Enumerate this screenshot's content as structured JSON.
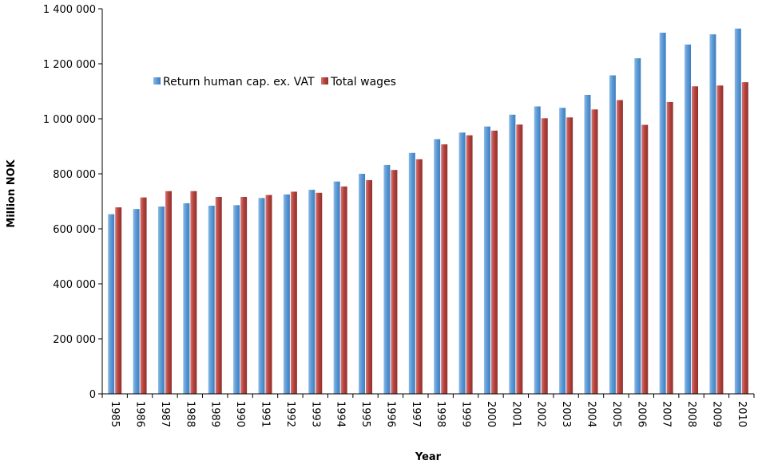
{
  "chart_data": {
    "type": "bar",
    "xlabel": "Year",
    "ylabel": "Million NOK",
    "ylim": [
      0,
      1400000
    ],
    "yticks": [
      0,
      200000,
      400000,
      600000,
      800000,
      1000000,
      1200000,
      1400000
    ],
    "ytick_labels": [
      "0",
      "200 000",
      "400 000",
      "600 000",
      "800 000",
      "1 000 000",
      "1 200 000",
      "1 400 000"
    ],
    "grid": false,
    "legend_position": "top-left",
    "categories": [
      "1985",
      "1986",
      "1987",
      "1988",
      "1989",
      "1990",
      "1991",
      "1992",
      "1993",
      "1994",
      "1995",
      "1996",
      "1997",
      "1998",
      "1999",
      "2000",
      "2001",
      "2002",
      "2003",
      "2004",
      "2005",
      "2006",
      "2007",
      "2008",
      "2009",
      "2010"
    ],
    "series": [
      {
        "name": "Return human cap. ex. VAT",
        "color": "#5B9BD5",
        "values": [
          653000,
          672000,
          681000,
          693000,
          684000,
          686000,
          712000,
          725000,
          742000,
          772000,
          800000,
          832000,
          876000,
          926000,
          950000,
          972000,
          1015000,
          1045000,
          1040000,
          1087000,
          1158000,
          1220000,
          1313000,
          1270000,
          1307000,
          1328000
        ]
      },
      {
        "name": "Total wages",
        "color": "#C0504D",
        "values": [
          678000,
          714000,
          737000,
          737000,
          716000,
          716000,
          723000,
          735000,
          731000,
          754000,
          777000,
          814000,
          853000,
          907000,
          940000,
          957000,
          979000,
          1002000,
          1005000,
          1034000,
          1068000,
          978000,
          1061000,
          1118000,
          1121000,
          1133000
        ]
      }
    ]
  }
}
